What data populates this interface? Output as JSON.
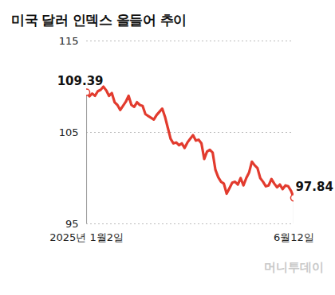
{
  "chart_data": {
    "type": "line",
    "title": "미국 달러 인덱스 올들어 추이",
    "source": "머니투데이",
    "categories": [
      "2025년 1월2일",
      null,
      null,
      null,
      null,
      null,
      null,
      null,
      null,
      null,
      null,
      null,
      null,
      null,
      null,
      null,
      null,
      null,
      null,
      null,
      null,
      null,
      null,
      null,
      null,
      null,
      null,
      null,
      null,
      null,
      null,
      null,
      null,
      null,
      null,
      null,
      null,
      null,
      null,
      null,
      null,
      null,
      null,
      null,
      null,
      null,
      null,
      null,
      null,
      null,
      null,
      null,
      null,
      null,
      null,
      null,
      null,
      null,
      null,
      null,
      null,
      null,
      null,
      null,
      null,
      null,
      null,
      null,
      null,
      null,
      null,
      null,
      null,
      null,
      "6월12일"
    ],
    "values": [
      109.39,
      108.95,
      109.25,
      109.0,
      109.5,
      109.65,
      110.0,
      109.6,
      109.0,
      109.3,
      108.3,
      108.0,
      107.45,
      107.9,
      108.35,
      109.0,
      108.0,
      107.8,
      108.3,
      108.0,
      107.9,
      107.0,
      106.8,
      106.6,
      106.4,
      106.9,
      107.25,
      107.6,
      106.7,
      105.5,
      104.3,
      103.8,
      103.9,
      103.6,
      103.8,
      103.3,
      103.9,
      104.3,
      104.7,
      104.1,
      104.2,
      103.8,
      102.1,
      102.9,
      103.1,
      102.8,
      100.9,
      100.1,
      99.6,
      99.4,
      98.3,
      98.9,
      99.5,
      99.6,
      99.3,
      100.0,
      99.2,
      100.0,
      100.6,
      101.8,
      101.4,
      101.1,
      100.0,
      99.6,
      99.1,
      99.2,
      99.9,
      99.4,
      99.0,
      99.3,
      98.8,
      99.2,
      99.1,
      98.6,
      97.84
    ],
    "color": "#e23b2e",
    "ylim": [
      95,
      115
    ],
    "yticks": [
      95,
      105,
      115
    ],
    "grid": true,
    "annotations": [
      "109.39",
      "97.84"
    ]
  }
}
